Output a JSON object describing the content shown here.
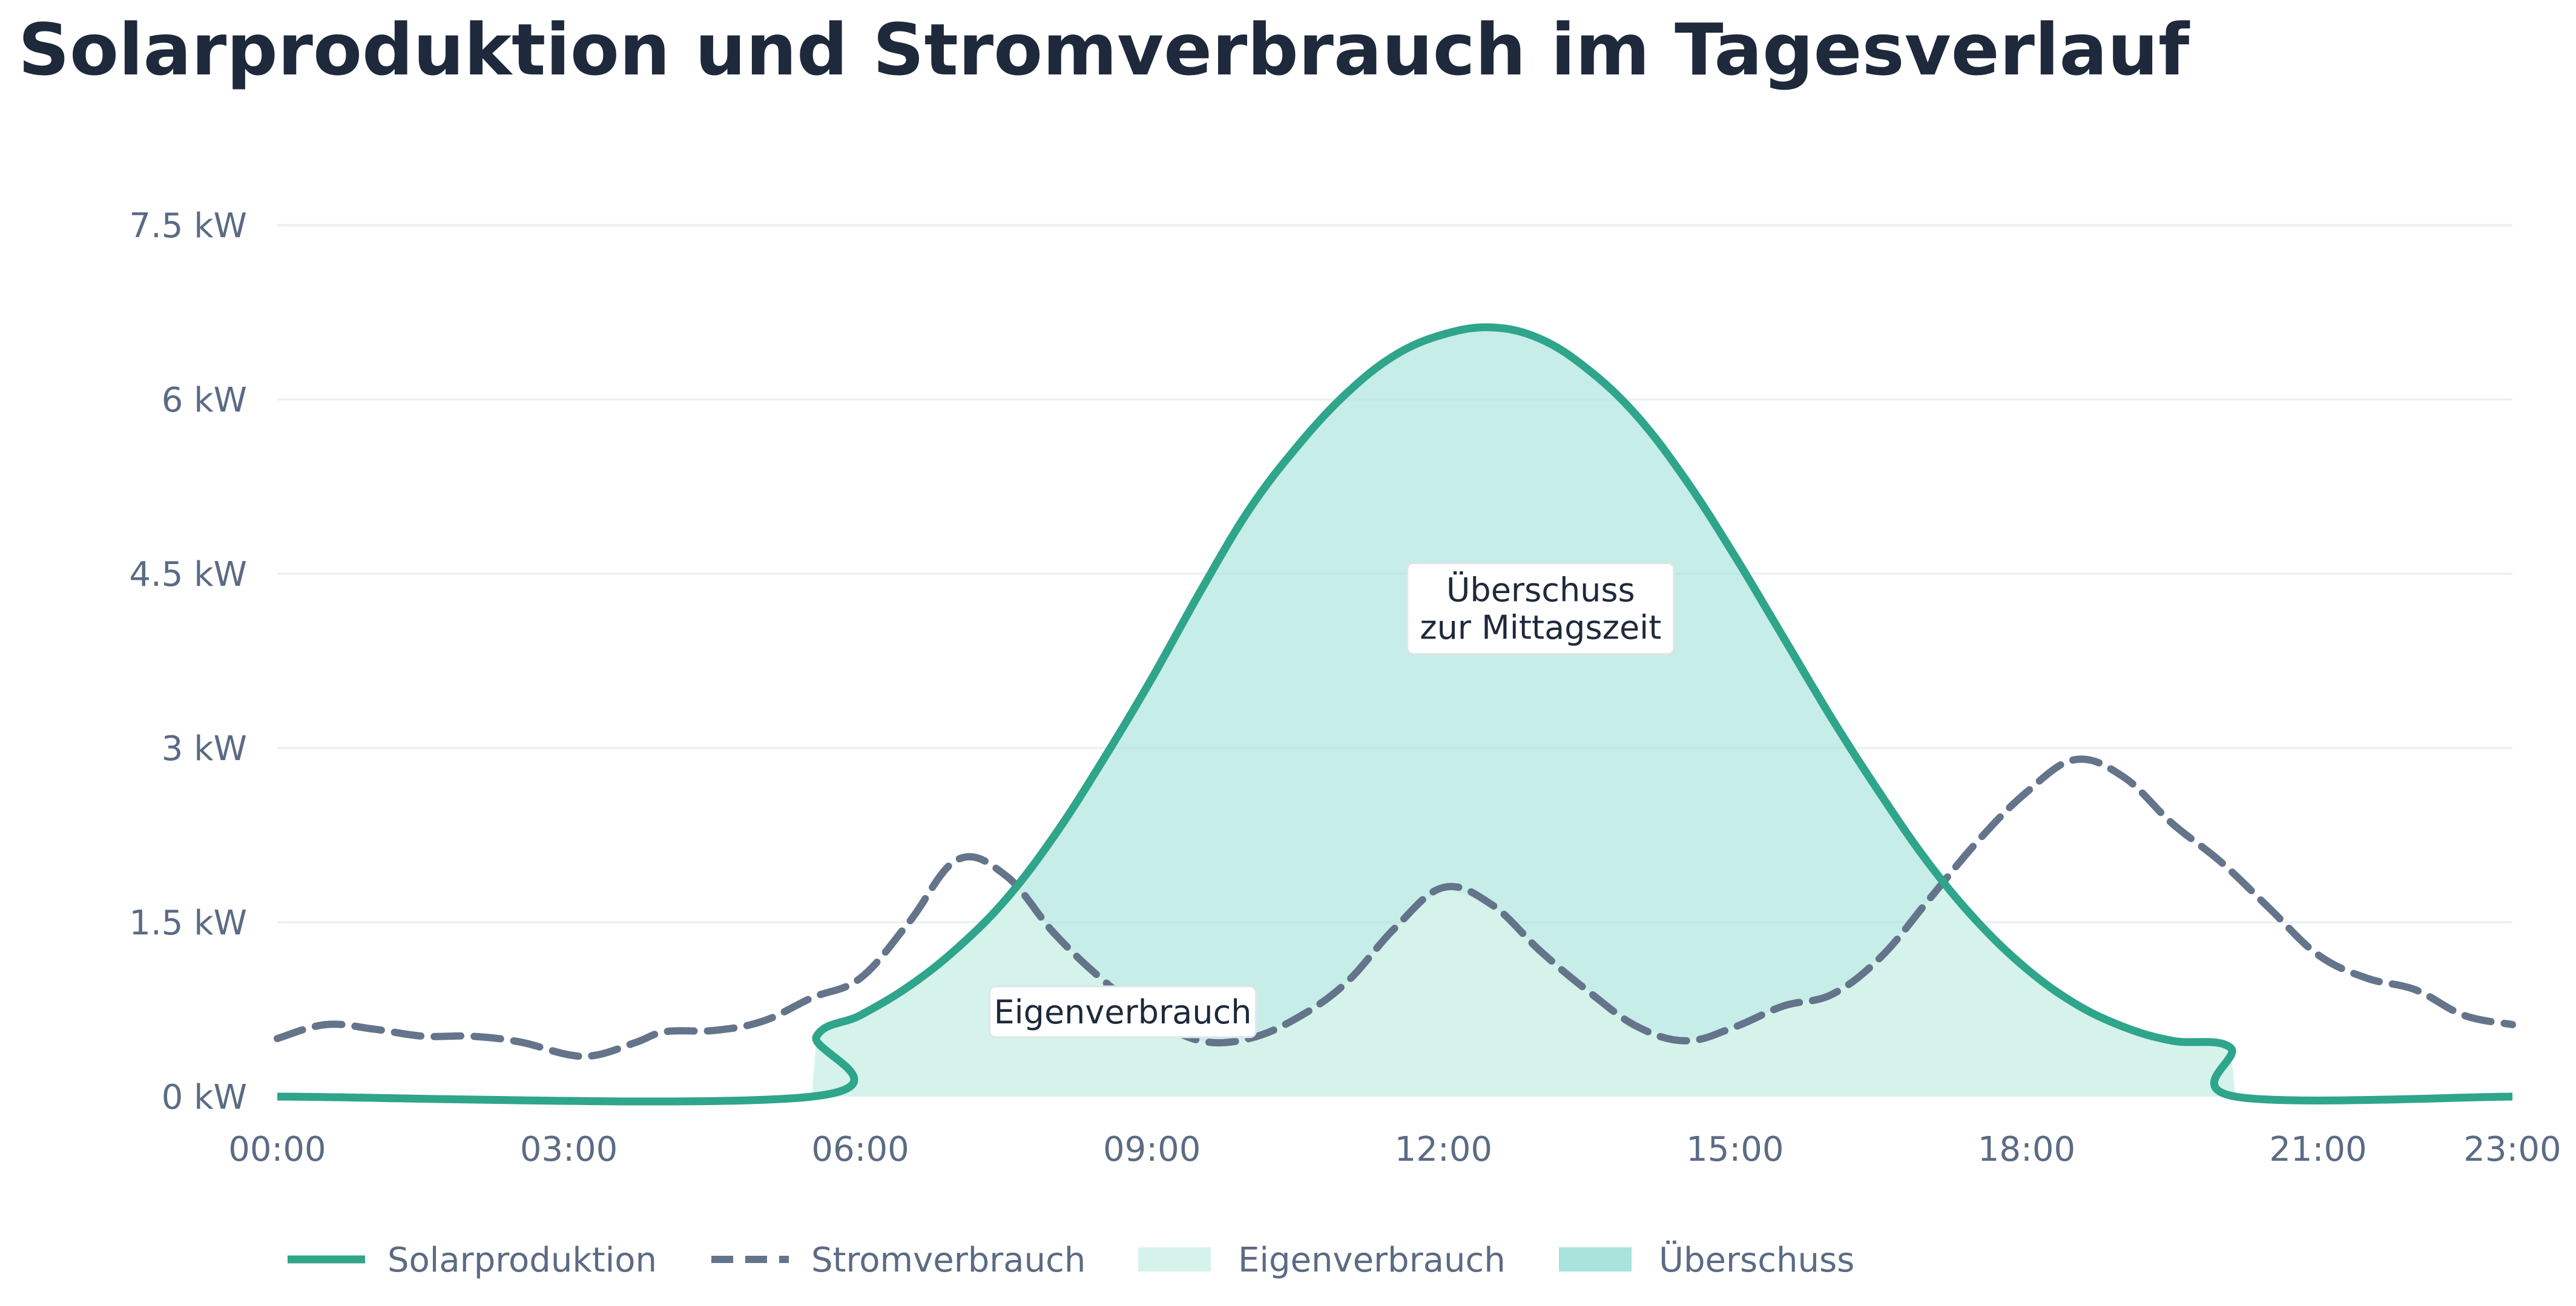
{
  "chart_data": {
    "type": "area",
    "title": "Solarproduktion und Stromverbrauch im Tagesverlauf",
    "xlabel": "",
    "ylabel": "",
    "x_unit": "hour",
    "xlim": [
      0,
      23
    ],
    "ylim": [
      0,
      7.5
    ],
    "grid": true,
    "legend_position": "bottom",
    "y_ticks": [
      {
        "value": 0,
        "label": "0 kW"
      },
      {
        "value": 1.5,
        "label": "1.5 kW"
      },
      {
        "value": 3,
        "label": "3 kW"
      },
      {
        "value": 4.5,
        "label": "4.5 kW"
      },
      {
        "value": 6,
        "label": "6 kW"
      },
      {
        "value": 7.5,
        "label": "7.5 kW"
      }
    ],
    "x_ticks": [
      {
        "value": 0,
        "label": "00:00"
      },
      {
        "value": 3,
        "label": "03:00"
      },
      {
        "value": 6,
        "label": "06:00"
      },
      {
        "value": 9,
        "label": "09:00"
      },
      {
        "value": 12,
        "label": "12:00"
      },
      {
        "value": 15,
        "label": "15:00"
      },
      {
        "value": 18,
        "label": "18:00"
      },
      {
        "value": 21,
        "label": "21:00"
      },
      {
        "value": 23,
        "label": "23:00"
      }
    ],
    "series": [
      {
        "name": "Solarproduktion",
        "style": "line",
        "color": "#2fa58b",
        "points": [
          [
            0,
            0
          ],
          [
            5.5,
            0
          ],
          [
            5.55,
            0.52
          ],
          [
            6,
            0.7
          ],
          [
            6.5,
            0.95
          ],
          [
            7,
            1.28
          ],
          [
            7.5,
            1.7
          ],
          [
            8,
            2.25
          ],
          [
            8.5,
            2.9
          ],
          [
            9,
            3.6
          ],
          [
            9.5,
            4.35
          ],
          [
            10,
            5.05
          ],
          [
            10.5,
            5.6
          ],
          [
            11,
            6.05
          ],
          [
            11.5,
            6.38
          ],
          [
            12,
            6.56
          ],
          [
            12.5,
            6.62
          ],
          [
            13,
            6.52
          ],
          [
            13.5,
            6.25
          ],
          [
            14,
            5.85
          ],
          [
            14.5,
            5.3
          ],
          [
            15,
            4.65
          ],
          [
            15.5,
            3.95
          ],
          [
            16,
            3.25
          ],
          [
            16.5,
            2.6
          ],
          [
            17,
            2.0
          ],
          [
            17.5,
            1.5
          ],
          [
            18,
            1.1
          ],
          [
            18.5,
            0.8
          ],
          [
            19,
            0.6
          ],
          [
            19.5,
            0.48
          ],
          [
            20.1,
            0.42
          ],
          [
            20.15,
            0
          ],
          [
            23,
            0
          ]
        ]
      },
      {
        "name": "Stromverbrauch",
        "style": "dashed",
        "color": "#64748b",
        "points": [
          [
            0,
            0.5
          ],
          [
            0.5,
            0.62
          ],
          [
            1,
            0.58
          ],
          [
            1.5,
            0.52
          ],
          [
            2,
            0.52
          ],
          [
            2.5,
            0.47
          ],
          [
            3,
            0.36
          ],
          [
            3.3,
            0.36
          ],
          [
            3.7,
            0.47
          ],
          [
            4,
            0.56
          ],
          [
            4.5,
            0.57
          ],
          [
            5,
            0.65
          ],
          [
            5.5,
            0.85
          ],
          [
            6,
            1.02
          ],
          [
            6.5,
            1.5
          ],
          [
            7,
            2.04
          ],
          [
            7.5,
            1.9
          ],
          [
            8,
            1.4
          ],
          [
            8.5,
            1.0
          ],
          [
            9,
            0.68
          ],
          [
            9.5,
            0.48
          ],
          [
            10,
            0.5
          ],
          [
            10.5,
            0.68
          ],
          [
            11,
            0.98
          ],
          [
            11.5,
            1.45
          ],
          [
            12,
            1.8
          ],
          [
            12.5,
            1.65
          ],
          [
            13,
            1.25
          ],
          [
            13.5,
            0.9
          ],
          [
            14,
            0.6
          ],
          [
            14.5,
            0.48
          ],
          [
            15,
            0.6
          ],
          [
            15.5,
            0.78
          ],
          [
            16,
            0.88
          ],
          [
            16.5,
            1.2
          ],
          [
            17,
            1.7
          ],
          [
            17.5,
            2.2
          ],
          [
            18,
            2.62
          ],
          [
            18.5,
            2.9
          ],
          [
            19,
            2.75
          ],
          [
            19.5,
            2.35
          ],
          [
            20,
            2.02
          ],
          [
            20.5,
            1.62
          ],
          [
            21,
            1.22
          ],
          [
            21.5,
            1.02
          ],
          [
            22,
            0.92
          ],
          [
            22.5,
            0.7
          ],
          [
            23,
            0.62
          ]
        ]
      }
    ],
    "areas": [
      {
        "name": "Eigenverbrauch",
        "color": "#d5f3ea",
        "description_of_fill": "min(Solarproduktion, Stromverbrauch)"
      },
      {
        "name": "Überschuss",
        "color": "#a8e3dc",
        "description_of_fill": "Solarproduktion above Stromverbrauch"
      }
    ],
    "annotations": [
      {
        "text_lines": [
          "Überschuss",
          "zur Mittagszeit"
        ],
        "x": 13.0,
        "y": 4.2
      },
      {
        "text_lines": [
          "Eigenverbrauch"
        ],
        "x": 8.7,
        "y": 0.73
      }
    ]
  }
}
